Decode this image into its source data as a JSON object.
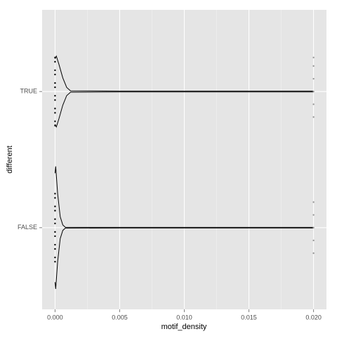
{
  "chart_data": {
    "type": "violin",
    "x_label": "motif_density",
    "y_label": "different",
    "categories": [
      "FALSE",
      "TRUE"
    ],
    "xlim": [
      -0.001,
      0.021
    ],
    "xticks": [
      {
        "value": 0,
        "label": "0.000"
      },
      {
        "value": 0.005,
        "label": "0.005"
      },
      {
        "value": 0.01,
        "label": "0.010"
      },
      {
        "value": 0.015,
        "label": "0.015"
      },
      {
        "value": 0.02,
        "label": "0.020"
      }
    ],
    "xminor": [
      0.0025,
      0.0075,
      0.0125,
      0.0175
    ],
    "grid": true,
    "color": "#000000",
    "violins": [
      {
        "x": [
          0,
          5e-05,
          0.0002,
          0.0004,
          0.0006,
          0.0008,
          0.005,
          0.01,
          0.015,
          0.02
        ],
        "half_width": [
          0.4,
          0.45,
          0.25,
          0.08,
          0.02,
          0.003,
          0.002,
          0.002,
          0.002,
          0.002
        ],
        "points": [
          0,
          0,
          0,
          0,
          0,
          0,
          0,
          0,
          0,
          0,
          0,
          0,
          0.02,
          0.02,
          0.02,
          0.02,
          0.02
        ]
      },
      {
        "x": [
          0,
          0.0001,
          0.0003,
          0.0006,
          0.0009,
          0.0012,
          0.005,
          0.01,
          0.015,
          0.02
        ],
        "half_width": [
          0.24,
          0.26,
          0.2,
          0.1,
          0.03,
          0.005,
          0.003,
          0.003,
          0.003,
          0.003
        ],
        "points": [
          0,
          0,
          0,
          0,
          0,
          0,
          0,
          0,
          0,
          0,
          0,
          0,
          0.02,
          0.02,
          0.02,
          0.02,
          0.02,
          0.02
        ]
      }
    ]
  }
}
